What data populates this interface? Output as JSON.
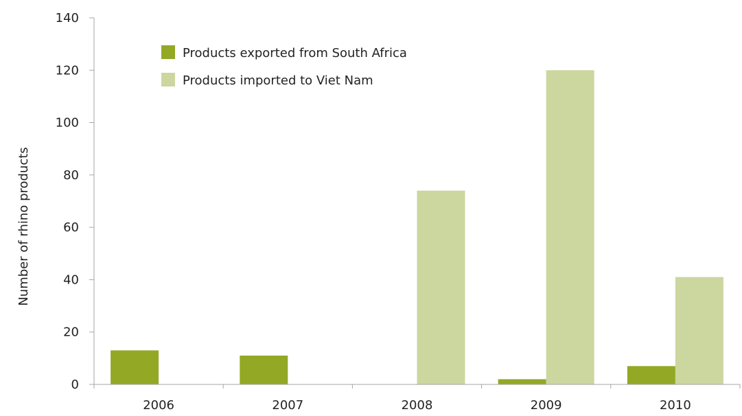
{
  "chart_data": {
    "type": "bar",
    "title": "",
    "xlabel": "",
    "ylabel": "Number of rhino products",
    "categories": [
      "2006",
      "2007",
      "2008",
      "2009",
      "2010"
    ],
    "series": [
      {
        "name": "Products exported from South Africa",
        "color": "#93a825",
        "values": [
          13,
          11,
          0,
          2,
          7
        ]
      },
      {
        "name": "Products imported to Viet Nam",
        "color": "#ccd69f",
        "values": [
          0,
          0,
          74,
          120,
          41
        ]
      }
    ],
    "ylim": [
      0,
      140
    ],
    "yticks": [
      0,
      20,
      40,
      60,
      80,
      100,
      120,
      140
    ],
    "grid": false,
    "legend_position": "top-left"
  }
}
